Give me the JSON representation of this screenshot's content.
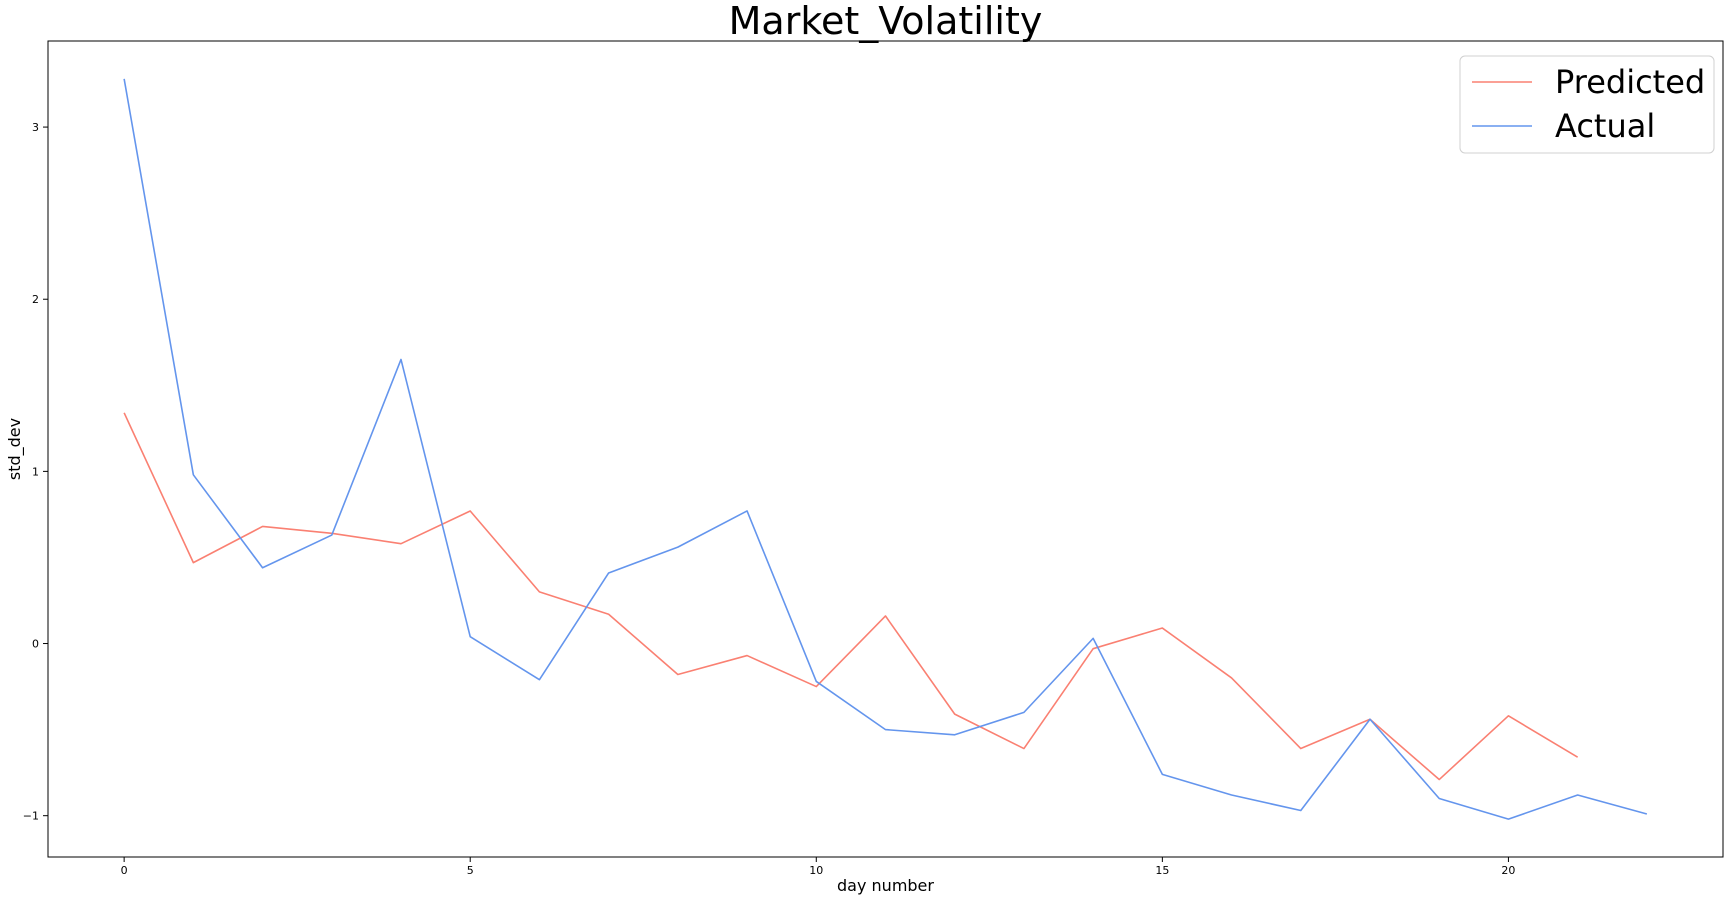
{
  "chart_data": {
    "type": "line",
    "title": "Market_Volatility",
    "xlabel": "day number",
    "ylabel": "std_dev",
    "xlim": [
      -1.1,
      23.1
    ],
    "ylim": [
      -1.24,
      3.5
    ],
    "xticks": [
      0,
      5,
      10,
      15,
      20
    ],
    "yticks": [
      -1,
      0,
      1,
      2,
      3
    ],
    "grid": false,
    "legend_position": "top-right",
    "series": [
      {
        "name": "Predicted",
        "color": "#fa8072",
        "x": [
          0,
          1,
          2,
          3,
          4,
          5,
          6,
          7,
          8,
          9,
          10,
          11,
          12,
          13,
          14,
          15,
          16,
          17,
          18,
          19,
          20,
          21
        ],
        "values": [
          1.34,
          0.47,
          0.68,
          0.64,
          0.58,
          0.77,
          0.3,
          0.17,
          -0.18,
          -0.07,
          -0.25,
          0.16,
          -0.41,
          -0.61,
          -0.03,
          0.09,
          -0.2,
          -0.61,
          -0.44,
          -0.79,
          -0.42,
          -0.66
        ]
      },
      {
        "name": "Actual",
        "color": "#6495ed",
        "x": [
          0,
          1,
          2,
          3,
          4,
          5,
          6,
          7,
          8,
          9,
          10,
          11,
          12,
          13,
          14,
          15,
          16,
          17,
          18,
          19,
          20,
          21,
          22
        ],
        "values": [
          3.28,
          0.98,
          0.44,
          0.63,
          1.65,
          0.04,
          -0.21,
          0.41,
          0.56,
          0.77,
          -0.22,
          -0.5,
          -0.53,
          -0.4,
          0.03,
          -0.76,
          -0.88,
          -0.97,
          -0.44,
          -0.9,
          -1.02,
          -0.88,
          -0.99
        ]
      }
    ]
  }
}
